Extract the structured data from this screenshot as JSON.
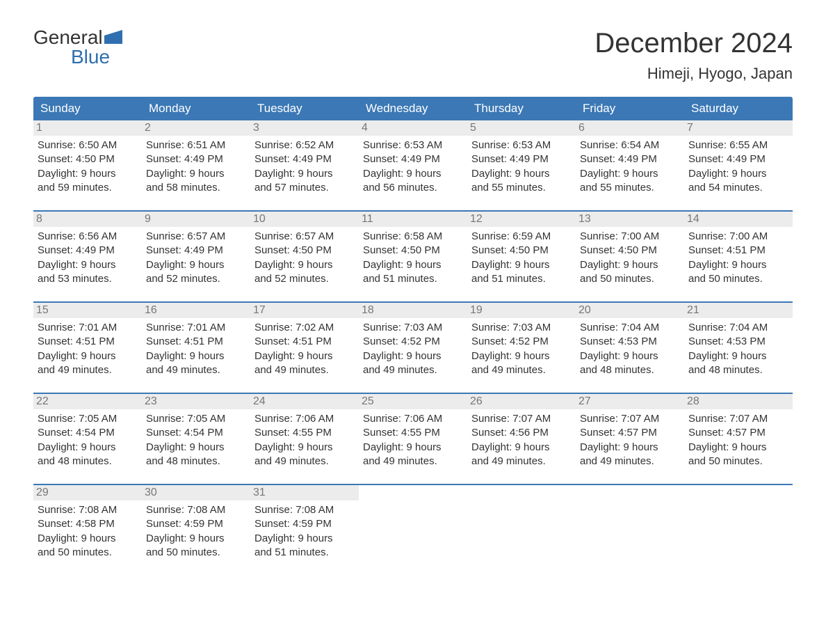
{
  "logo": {
    "line1": "General",
    "line2": "Blue",
    "flag_color": "#2f6fb0"
  },
  "title": "December 2024",
  "location": "Himeji, Hyogo, Japan",
  "colors": {
    "header_bg": "#3b78b5",
    "header_text": "#ffffff",
    "daynum_bg": "#ececec",
    "daynum_text": "#777777",
    "body_text": "#333333",
    "week_divider": "#3b78b5"
  },
  "days_of_week": [
    "Sunday",
    "Monday",
    "Tuesday",
    "Wednesday",
    "Thursday",
    "Friday",
    "Saturday"
  ],
  "labels": {
    "sunrise": "Sunrise:",
    "sunset": "Sunset:",
    "daylight": "Daylight:"
  },
  "weeks": [
    [
      {
        "n": "1",
        "sunrise": "6:50 AM",
        "sunset": "4:50 PM",
        "dl1": "9 hours",
        "dl2": "and 59 minutes."
      },
      {
        "n": "2",
        "sunrise": "6:51 AM",
        "sunset": "4:49 PM",
        "dl1": "9 hours",
        "dl2": "and 58 minutes."
      },
      {
        "n": "3",
        "sunrise": "6:52 AM",
        "sunset": "4:49 PM",
        "dl1": "9 hours",
        "dl2": "and 57 minutes."
      },
      {
        "n": "4",
        "sunrise": "6:53 AM",
        "sunset": "4:49 PM",
        "dl1": "9 hours",
        "dl2": "and 56 minutes."
      },
      {
        "n": "5",
        "sunrise": "6:53 AM",
        "sunset": "4:49 PM",
        "dl1": "9 hours",
        "dl2": "and 55 minutes."
      },
      {
        "n": "6",
        "sunrise": "6:54 AM",
        "sunset": "4:49 PM",
        "dl1": "9 hours",
        "dl2": "and 55 minutes."
      },
      {
        "n": "7",
        "sunrise": "6:55 AM",
        "sunset": "4:49 PM",
        "dl1": "9 hours",
        "dl2": "and 54 minutes."
      }
    ],
    [
      {
        "n": "8",
        "sunrise": "6:56 AM",
        "sunset": "4:49 PM",
        "dl1": "9 hours",
        "dl2": "and 53 minutes."
      },
      {
        "n": "9",
        "sunrise": "6:57 AM",
        "sunset": "4:49 PM",
        "dl1": "9 hours",
        "dl2": "and 52 minutes."
      },
      {
        "n": "10",
        "sunrise": "6:57 AM",
        "sunset": "4:50 PM",
        "dl1": "9 hours",
        "dl2": "and 52 minutes."
      },
      {
        "n": "11",
        "sunrise": "6:58 AM",
        "sunset": "4:50 PM",
        "dl1": "9 hours",
        "dl2": "and 51 minutes."
      },
      {
        "n": "12",
        "sunrise": "6:59 AM",
        "sunset": "4:50 PM",
        "dl1": "9 hours",
        "dl2": "and 51 minutes."
      },
      {
        "n": "13",
        "sunrise": "7:00 AM",
        "sunset": "4:50 PM",
        "dl1": "9 hours",
        "dl2": "and 50 minutes."
      },
      {
        "n": "14",
        "sunrise": "7:00 AM",
        "sunset": "4:51 PM",
        "dl1": "9 hours",
        "dl2": "and 50 minutes."
      }
    ],
    [
      {
        "n": "15",
        "sunrise": "7:01 AM",
        "sunset": "4:51 PM",
        "dl1": "9 hours",
        "dl2": "and 49 minutes."
      },
      {
        "n": "16",
        "sunrise": "7:01 AM",
        "sunset": "4:51 PM",
        "dl1": "9 hours",
        "dl2": "and 49 minutes."
      },
      {
        "n": "17",
        "sunrise": "7:02 AM",
        "sunset": "4:51 PM",
        "dl1": "9 hours",
        "dl2": "and 49 minutes."
      },
      {
        "n": "18",
        "sunrise": "7:03 AM",
        "sunset": "4:52 PM",
        "dl1": "9 hours",
        "dl2": "and 49 minutes."
      },
      {
        "n": "19",
        "sunrise": "7:03 AM",
        "sunset": "4:52 PM",
        "dl1": "9 hours",
        "dl2": "and 49 minutes."
      },
      {
        "n": "20",
        "sunrise": "7:04 AM",
        "sunset": "4:53 PM",
        "dl1": "9 hours",
        "dl2": "and 48 minutes."
      },
      {
        "n": "21",
        "sunrise": "7:04 AM",
        "sunset": "4:53 PM",
        "dl1": "9 hours",
        "dl2": "and 48 minutes."
      }
    ],
    [
      {
        "n": "22",
        "sunrise": "7:05 AM",
        "sunset": "4:54 PM",
        "dl1": "9 hours",
        "dl2": "and 48 minutes."
      },
      {
        "n": "23",
        "sunrise": "7:05 AM",
        "sunset": "4:54 PM",
        "dl1": "9 hours",
        "dl2": "and 48 minutes."
      },
      {
        "n": "24",
        "sunrise": "7:06 AM",
        "sunset": "4:55 PM",
        "dl1": "9 hours",
        "dl2": "and 49 minutes."
      },
      {
        "n": "25",
        "sunrise": "7:06 AM",
        "sunset": "4:55 PM",
        "dl1": "9 hours",
        "dl2": "and 49 minutes."
      },
      {
        "n": "26",
        "sunrise": "7:07 AM",
        "sunset": "4:56 PM",
        "dl1": "9 hours",
        "dl2": "and 49 minutes."
      },
      {
        "n": "27",
        "sunrise": "7:07 AM",
        "sunset": "4:57 PM",
        "dl1": "9 hours",
        "dl2": "and 49 minutes."
      },
      {
        "n": "28",
        "sunrise": "7:07 AM",
        "sunset": "4:57 PM",
        "dl1": "9 hours",
        "dl2": "and 50 minutes."
      }
    ],
    [
      {
        "n": "29",
        "sunrise": "7:08 AM",
        "sunset": "4:58 PM",
        "dl1": "9 hours",
        "dl2": "and 50 minutes."
      },
      {
        "n": "30",
        "sunrise": "7:08 AM",
        "sunset": "4:59 PM",
        "dl1": "9 hours",
        "dl2": "and 50 minutes."
      },
      {
        "n": "31",
        "sunrise": "7:08 AM",
        "sunset": "4:59 PM",
        "dl1": "9 hours",
        "dl2": "and 51 minutes."
      },
      null,
      null,
      null,
      null
    ]
  ]
}
